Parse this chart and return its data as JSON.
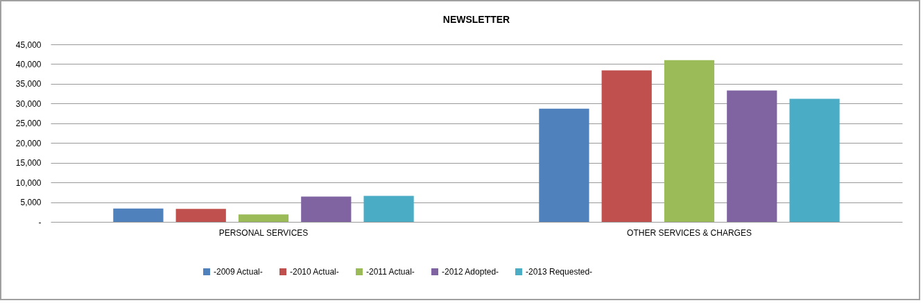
{
  "chart_data": {
    "type": "bar",
    "title": "NEWSLETTER",
    "categories": [
      "PERSONAL SERVICES",
      "OTHER SERVICES & CHARGES"
    ],
    "series": [
      {
        "name": "-2009 Actual-",
        "color": "#4f81bd",
        "values": [
          3400,
          28700
        ]
      },
      {
        "name": "-2010 Actual-",
        "color": "#c0504d",
        "values": [
          3300,
          38400
        ]
      },
      {
        "name": "-2011 Actual-",
        "color": "#9bbb59",
        "values": [
          1900,
          41000
        ]
      },
      {
        "name": "-2012 Adopted-",
        "color": "#8064a2",
        "values": [
          6400,
          33300
        ]
      },
      {
        "name": "-2013 Requested-",
        "color": "#4bacc6",
        "values": [
          6600,
          31200
        ]
      }
    ],
    "ylim": [
      0,
      45000
    ],
    "yticks": [
      {
        "value": 0,
        "label": "-"
      },
      {
        "value": 5000,
        "label": "5,000"
      },
      {
        "value": 10000,
        "label": "10,000"
      },
      {
        "value": 15000,
        "label": "15,000"
      },
      {
        "value": 20000,
        "label": "20,000"
      },
      {
        "value": 25000,
        "label": "25,000"
      },
      {
        "value": 30000,
        "label": "30,000"
      },
      {
        "value": 35000,
        "label": "35,000"
      },
      {
        "value": 40000,
        "label": "40,000"
      },
      {
        "value": 45000,
        "label": "45,000"
      }
    ],
    "grid": "y",
    "legend": "bottom"
  }
}
